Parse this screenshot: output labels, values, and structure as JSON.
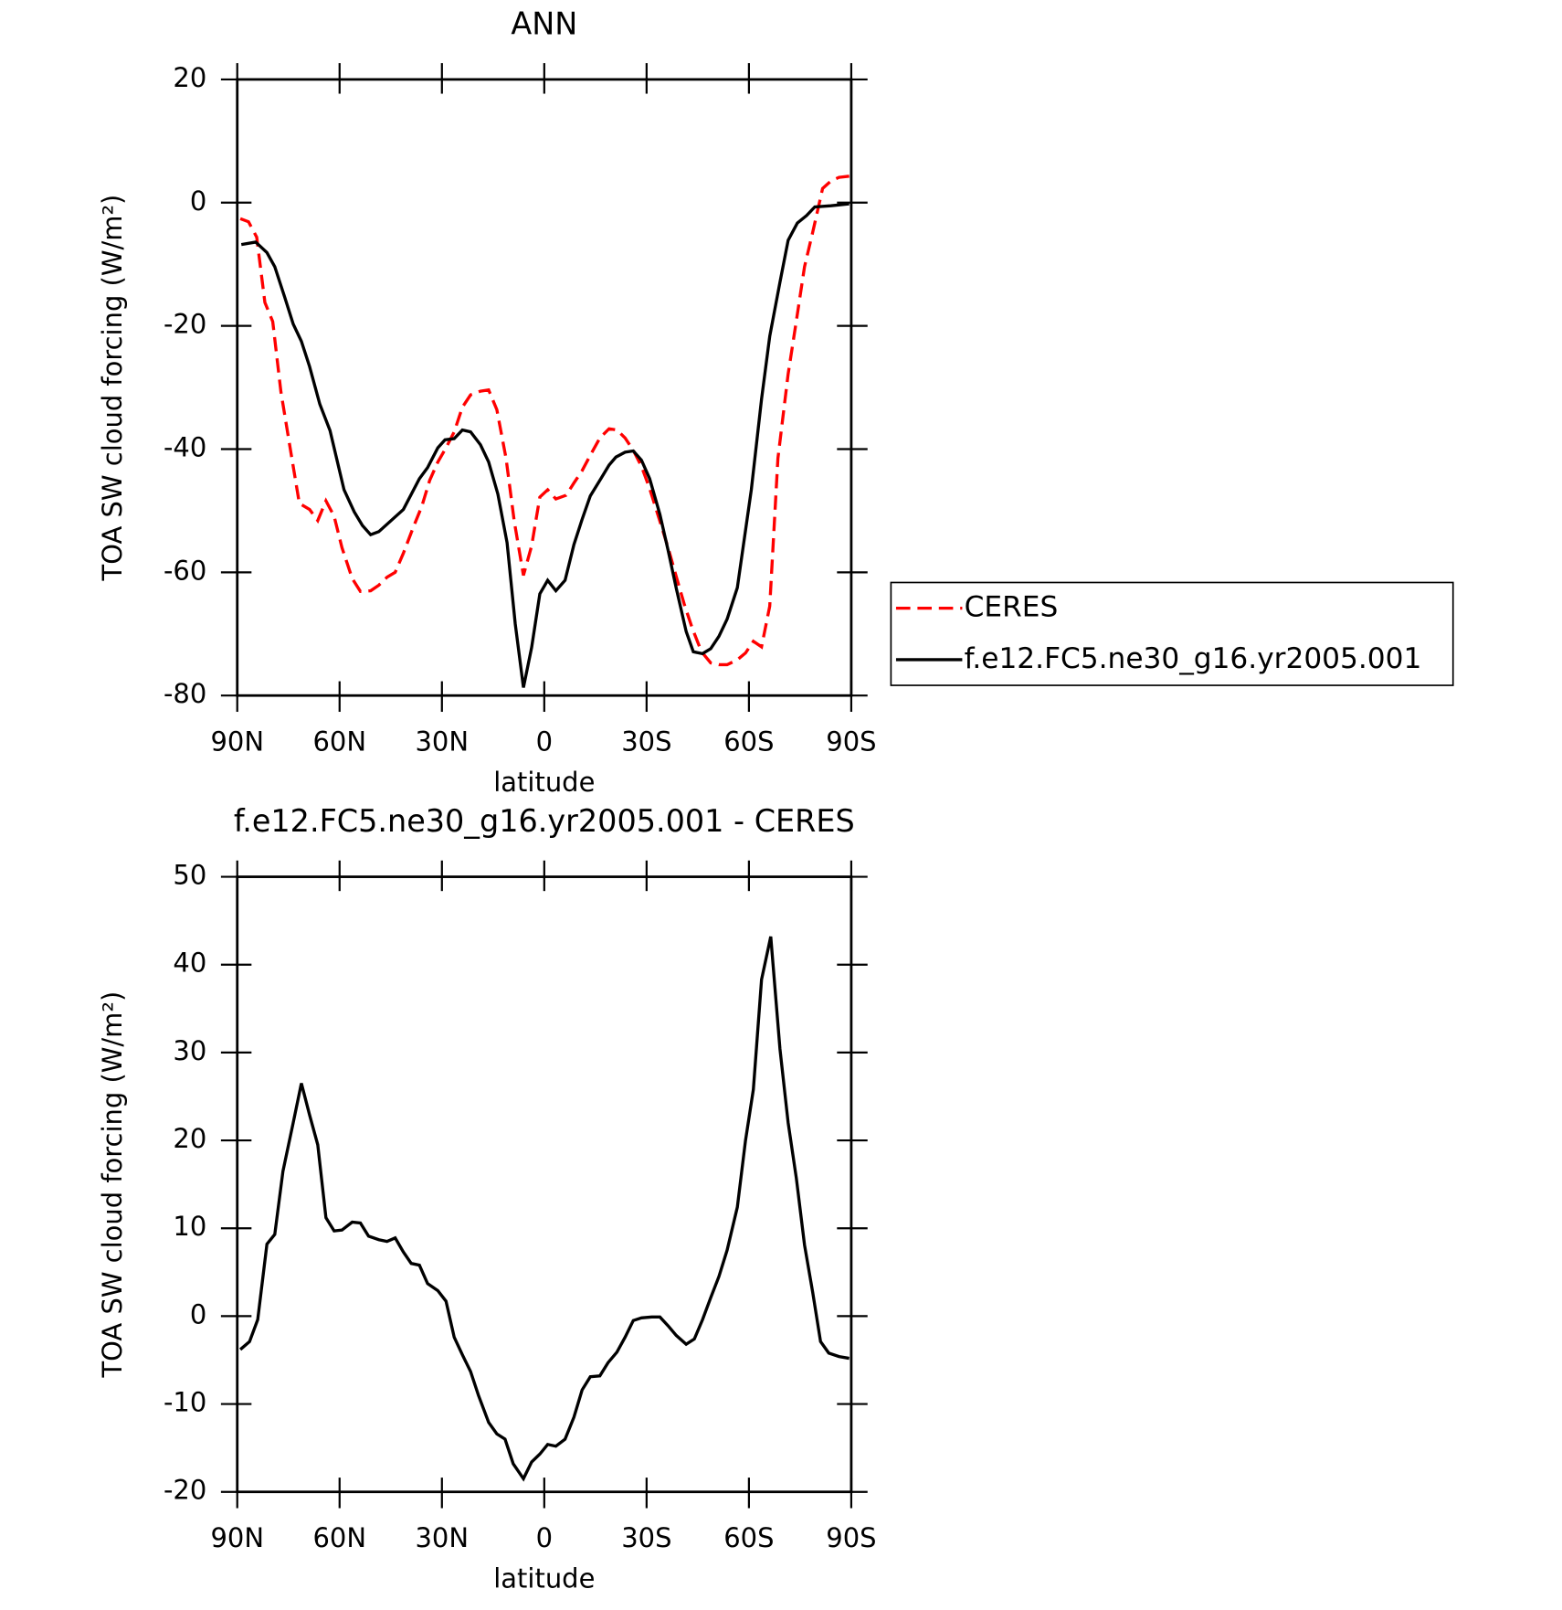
{
  "chart_data": [
    {
      "type": "line",
      "title": "ANN",
      "xlabel": "latitude",
      "ylabel": "TOA SW cloud forcing (W/m²)",
      "xlim": [
        90,
        -90
      ],
      "ylim": [
        -80,
        20
      ],
      "xticks": [
        {
          "value": 90,
          "label": "90N"
        },
        {
          "value": 60,
          "label": "60N"
        },
        {
          "value": 30,
          "label": "30N"
        },
        0,
        {
          "value": -30,
          "label": "30S"
        },
        {
          "value": -60,
          "label": "60S"
        },
        {
          "value": -90,
          "label": "90S"
        }
      ],
      "yticks": [
        -80,
        -60,
        -40,
        -20,
        0,
        20
      ],
      "legend": "outside-right",
      "series": [
        {
          "name": "CERES",
          "color": "#ff0000",
          "dash": true,
          "x": [
            89.1,
            86.7,
            84.3,
            81.9,
            79.6,
            77.2,
            74.2,
            71.8,
            68.8,
            66.4,
            64.0,
            61.6,
            59.3,
            56.3,
            53.9,
            50.9,
            48.5,
            46.1,
            43.7,
            41.3,
            38.4,
            35.9,
            33.6,
            31.2,
            28.8,
            26.4,
            24.0,
            21.6,
            18.7,
            16.3,
            13.9,
            11.2,
            8.8,
            6.1,
            3.7,
            1.3,
            -1.0,
            -3.4,
            -6.4,
            -8.7,
            -11.1,
            -13.5,
            -16.3,
            -19.0,
            -21.3,
            -23.7,
            -26.1,
            -28.5,
            -30.9,
            -33.9,
            -36.3,
            -38.7,
            -41.0,
            -43.4,
            -46.1,
            -48.8,
            -51.2,
            -53.6,
            -56.6,
            -59.0,
            -61.3,
            -63.7,
            -66.1,
            -68.5,
            -71.5,
            -73.9,
            -76.3,
            -78.7,
            -81.6,
            -84.0,
            -86.4,
            -89.4
          ],
          "values": [
            -2.6,
            -3.1,
            -5.6,
            -16.2,
            -19.3,
            -30.7,
            -40.8,
            -48.8,
            -49.8,
            -51.6,
            -48.4,
            -50.9,
            -56.0,
            -61.0,
            -63.1,
            -63.0,
            -62.1,
            -60.8,
            -60.0,
            -56.9,
            -52.7,
            -49.3,
            -45.1,
            -42.1,
            -39.8,
            -37.2,
            -33.2,
            -31.2,
            -30.6,
            -30.4,
            -33.6,
            -41.5,
            -51.7,
            -60.5,
            -55.7,
            -47.8,
            -46.6,
            -48.1,
            -47.5,
            -45.5,
            -43.5,
            -41.0,
            -38.2,
            -36.7,
            -36.9,
            -38.2,
            -40.2,
            -42.8,
            -46.4,
            -51.7,
            -56.0,
            -60.7,
            -65.1,
            -69.1,
            -72.9,
            -74.7,
            -75.0,
            -75.0,
            -74.2,
            -73.1,
            -71.2,
            -72.1,
            -65.5,
            -41.5,
            -27.8,
            -19.2,
            -10.4,
            -4.8,
            2.3,
            3.5,
            4.1,
            4.3
          ]
        },
        {
          "name": "f.e12.FC5.ne30_g16.yr2005.001",
          "color": "#000000",
          "dash": false,
          "x": [
            88.8,
            84.6,
            81.3,
            79.0,
            76.0,
            73.6,
            71.2,
            68.8,
            65.8,
            62.8,
            58.7,
            55.7,
            53.3,
            50.9,
            48.5,
            41.3,
            36.6,
            34.2,
            31.2,
            29.1,
            26.4,
            24.0,
            21.6,
            18.7,
            16.3,
            13.6,
            10.9,
            8.5,
            6.1,
            3.7,
            1.3,
            -1.0,
            -3.4,
            -6.1,
            -8.7,
            -11.1,
            -13.5,
            -16.6,
            -19.0,
            -21.0,
            -23.7,
            -26.1,
            -28.5,
            -30.9,
            -33.9,
            -36.3,
            -38.7,
            -41.6,
            -43.7,
            -46.4,
            -48.8,
            -51.2,
            -53.6,
            -56.6,
            -60.7,
            -63.7,
            -66.1,
            -69.1,
            -71.5,
            -74.2,
            -76.9,
            -79.3,
            -84.0,
            -89.4
          ],
          "values": [
            -6.8,
            -6.4,
            -8.1,
            -10.4,
            -15.5,
            -19.7,
            -22.5,
            -26.6,
            -32.7,
            -37.0,
            -46.6,
            -50.2,
            -52.4,
            -53.9,
            -53.4,
            -49.8,
            -44.8,
            -43.0,
            -39.8,
            -38.5,
            -38.3,
            -36.9,
            -37.2,
            -39.3,
            -42.1,
            -47.3,
            -55.2,
            -68.4,
            -78.7,
            -72.2,
            -63.5,
            -61.3,
            -63.0,
            -61.3,
            -55.5,
            -51.4,
            -47.6,
            -44.8,
            -42.6,
            -41.3,
            -40.5,
            -40.3,
            -41.8,
            -44.8,
            -50.6,
            -56.4,
            -62.6,
            -69.6,
            -72.9,
            -73.2,
            -72.4,
            -70.4,
            -67.6,
            -62.5,
            -46.6,
            -31.9,
            -21.7,
            -12.9,
            -6.1,
            -3.3,
            -2.1,
            -0.7,
            -0.5,
            -0.2
          ]
        }
      ]
    },
    {
      "type": "line",
      "title": "f.e12.FC5.ne30_g16.yr2005.001 - CERES",
      "xlabel": "latitude",
      "ylabel": "TOA SW cloud forcing (W/m²)",
      "xlim": [
        90,
        -90
      ],
      "ylim": [
        -20,
        50
      ],
      "xticks": [
        {
          "value": 90,
          "label": "90N"
        },
        {
          "value": 60,
          "label": "60N"
        },
        {
          "value": 30,
          "label": "30N"
        },
        0,
        {
          "value": -30,
          "label": "30S"
        },
        {
          "value": -60,
          "label": "60S"
        },
        {
          "value": -90,
          "label": "90S"
        }
      ],
      "yticks": [
        -20,
        -10,
        0,
        10,
        20,
        30,
        40,
        50
      ],
      "color": "#000000",
      "x": [
        89.1,
        86.4,
        84.0,
        81.3,
        79.0,
        76.6,
        73.6,
        71.2,
        68.8,
        66.4,
        64.0,
        61.6,
        59.3,
        56.3,
        53.9,
        51.5,
        48.5,
        46.1,
        43.7,
        41.3,
        39.0,
        36.6,
        34.2,
        31.2,
        28.8,
        26.4,
        24.0,
        21.6,
        19.3,
        16.3,
        13.9,
        11.5,
        9.1,
        6.1,
        3.7,
        1.3,
        -1.0,
        -3.4,
        -6.1,
        -8.7,
        -11.1,
        -13.5,
        -16.3,
        -18.7,
        -21.3,
        -23.7,
        -26.1,
        -28.5,
        -31.5,
        -33.9,
        -36.3,
        -38.7,
        -41.6,
        -44.0,
        -46.4,
        -48.8,
        -51.2,
        -53.6,
        -56.6,
        -59.0,
        -61.3,
        -63.7,
        -66.4,
        -69.1,
        -71.5,
        -73.9,
        -76.3,
        -78.7,
        -81.0,
        -83.4,
        -86.4,
        -89.4
      ],
      "values": [
        -3.8,
        -2.9,
        -0.4,
        8.2,
        9.3,
        16.5,
        22.0,
        26.5,
        22.9,
        19.5,
        11.2,
        9.7,
        9.8,
        10.7,
        10.6,
        9.1,
        8.7,
        8.5,
        8.9,
        7.3,
        6.0,
        5.8,
        3.7,
        2.9,
        1.7,
        -2.4,
        -4.4,
        -6.3,
        -9.0,
        -12.1,
        -13.4,
        -14.0,
        -16.8,
        -18.5,
        -16.6,
        -15.7,
        -14.6,
        -14.8,
        -14.0,
        -11.5,
        -8.4,
        -6.9,
        -6.8,
        -5.3,
        -4.1,
        -2.4,
        -0.5,
        -0.2,
        -0.1,
        -0.1,
        -1.1,
        -2.2,
        -3.2,
        -2.6,
        -0.4,
        2.1,
        4.5,
        7.5,
        12.4,
        20.0,
        25.8,
        38.3,
        43.2,
        30.4,
        22.0,
        15.7,
        8.1,
        2.7,
        -2.9,
        -4.2,
        -4.6,
        -4.8
      ]
    }
  ]
}
